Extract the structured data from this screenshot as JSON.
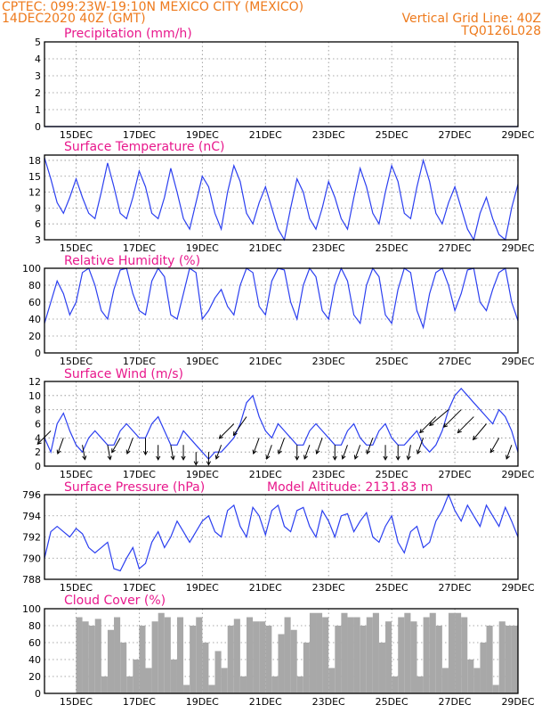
{
  "header": {
    "line1_left": "CPTEC:  099:23W-19:10N  MEXICO CITY (MEXICO)",
    "line2_left": "14DEC2020 40Z (GMT)",
    "line2_right": "Vertical Grid Line: 40Z",
    "line3_right": "TQ0126L028"
  },
  "colors": {
    "header": "#ee7a1c",
    "panel_title": "#e8188c",
    "series": "#2b3ff0",
    "cloud": "#a8a8a8"
  },
  "x_labels": [
    "15DEC",
    "17DEC",
    "19DEC",
    "21DEC",
    "23DEC",
    "25DEC",
    "27DEC",
    "29DEC"
  ],
  "chart_data": [
    {
      "type": "line",
      "title": "Precipitation (mm/h)",
      "x": [
        14,
        29
      ],
      "values": [
        0,
        0
      ],
      "ylim": [
        0,
        5
      ],
      "yticks": [
        0,
        1,
        2,
        3,
        4,
        5
      ],
      "grid": true
    },
    {
      "type": "line",
      "title": "Surface Temperature (nC)",
      "x": [
        14.0,
        14.2,
        14.4,
        14.6,
        14.8,
        15.0,
        15.2,
        15.4,
        15.6,
        15.8,
        16.0,
        16.2,
        16.4,
        16.6,
        16.8,
        17.0,
        17.2,
        17.4,
        17.6,
        17.8,
        18.0,
        18.2,
        18.4,
        18.6,
        18.8,
        19.0,
        19.2,
        19.4,
        19.6,
        19.8,
        20.0,
        20.2,
        20.4,
        20.6,
        20.8,
        21.0,
        21.2,
        21.4,
        21.6,
        21.8,
        22.0,
        22.2,
        22.4,
        22.6,
        22.8,
        23.0,
        23.2,
        23.4,
        23.6,
        23.8,
        24.0,
        24.2,
        24.4,
        24.6,
        24.8,
        25.0,
        25.2,
        25.4,
        25.6,
        25.8,
        26.0,
        26.2,
        26.4,
        26.6,
        26.8,
        27.0,
        27.2,
        27.4,
        27.6,
        27.8,
        28.0,
        28.2,
        28.4,
        28.6,
        28.8,
        29.0
      ],
      "values": [
        18.5,
        14.5,
        10,
        8,
        11,
        14.5,
        11,
        8,
        7,
        12,
        17.5,
        13,
        8,
        7,
        11,
        16,
        13,
        8,
        7,
        11,
        16.5,
        12,
        7,
        5,
        10,
        15,
        13,
        8,
        5,
        12,
        17,
        14,
        8,
        6,
        10,
        13,
        9,
        5,
        3,
        9,
        14.5,
        12,
        7,
        5,
        9,
        14,
        11,
        7,
        5,
        11,
        16.5,
        13,
        8,
        6,
        12,
        17,
        14,
        8,
        7,
        13,
        18,
        14,
        8,
        6,
        10,
        13,
        9,
        5,
        3,
        8,
        11,
        7,
        4,
        3,
        9,
        13.5
      ],
      "ylim": [
        3,
        19
      ],
      "yticks": [
        3,
        6,
        9,
        12,
        15,
        18
      ],
      "grid": true
    },
    {
      "type": "line",
      "title": "Relative Humidity (%)",
      "x": [
        14.0,
        14.2,
        14.4,
        14.6,
        14.8,
        15.0,
        15.2,
        15.4,
        15.6,
        15.8,
        16.0,
        16.2,
        16.4,
        16.6,
        16.8,
        17.0,
        17.2,
        17.4,
        17.6,
        17.8,
        18.0,
        18.2,
        18.4,
        18.6,
        18.8,
        19.0,
        19.2,
        19.4,
        19.6,
        19.8,
        20.0,
        20.2,
        20.4,
        20.6,
        20.8,
        21.0,
        21.2,
        21.4,
        21.6,
        21.8,
        22.0,
        22.2,
        22.4,
        22.6,
        22.8,
        23.0,
        23.2,
        23.4,
        23.6,
        23.8,
        24.0,
        24.2,
        24.4,
        24.6,
        24.8,
        25.0,
        25.2,
        25.4,
        25.6,
        25.8,
        26.0,
        26.2,
        26.4,
        26.6,
        26.8,
        27.0,
        27.2,
        27.4,
        27.6,
        27.8,
        28.0,
        28.2,
        28.4,
        28.6,
        28.8,
        29.0
      ],
      "values": [
        35,
        60,
        85,
        70,
        45,
        60,
        95,
        100,
        80,
        50,
        40,
        75,
        98,
        100,
        70,
        50,
        45,
        85,
        100,
        90,
        45,
        40,
        70,
        100,
        95,
        40,
        50,
        65,
        75,
        55,
        45,
        80,
        100,
        95,
        55,
        45,
        85,
        100,
        98,
        60,
        40,
        80,
        100,
        90,
        50,
        40,
        80,
        100,
        85,
        45,
        35,
        80,
        100,
        90,
        45,
        35,
        75,
        100,
        95,
        50,
        30,
        70,
        95,
        100,
        80,
        50,
        70,
        98,
        100,
        60,
        50,
        75,
        95,
        100,
        60,
        38
      ],
      "ylim": [
        0,
        100
      ],
      "yticks": [
        0,
        20,
        40,
        60,
        80,
        100
      ],
      "grid": true
    },
    {
      "type": "line",
      "title": "Surface Wind (m/s)",
      "x": [
        14.0,
        14.2,
        14.4,
        14.6,
        14.8,
        15.0,
        15.2,
        15.4,
        15.6,
        15.8,
        16.0,
        16.2,
        16.4,
        16.6,
        16.8,
        17.0,
        17.2,
        17.4,
        17.6,
        17.8,
        18.0,
        18.2,
        18.4,
        18.6,
        18.8,
        19.0,
        19.2,
        19.4,
        19.6,
        19.8,
        20.0,
        20.2,
        20.4,
        20.6,
        20.8,
        21.0,
        21.2,
        21.4,
        21.6,
        21.8,
        22.0,
        22.2,
        22.4,
        22.6,
        22.8,
        23.0,
        23.2,
        23.4,
        23.6,
        23.8,
        24.0,
        24.2,
        24.4,
        24.6,
        24.8,
        25.0,
        25.2,
        25.4,
        25.6,
        25.8,
        26.0,
        26.2,
        26.4,
        26.6,
        26.8,
        27.0,
        27.2,
        27.4,
        27.6,
        27.8,
        28.0,
        28.2,
        28.4,
        28.6,
        28.8,
        29.0
      ],
      "values": [
        4,
        2,
        6,
        7.5,
        5,
        3,
        2,
        4,
        5,
        4,
        3,
        3,
        5,
        6,
        5,
        4,
        4,
        6,
        7,
        5,
        3,
        3,
        5,
        4,
        3,
        2,
        1,
        2,
        2,
        3,
        4,
        6,
        9,
        10,
        7,
        5,
        4,
        6,
        5,
        4,
        3,
        3,
        5,
        6,
        5,
        4,
        3,
        3,
        5,
        6,
        4,
        3,
        3,
        5,
        6,
        4,
        3,
        3,
        4,
        5,
        3,
        2,
        3,
        5,
        8,
        10,
        11,
        10,
        9,
        8,
        7,
        6,
        8,
        7,
        5,
        2
      ],
      "ylim": [
        0,
        12
      ],
      "yticks": [
        0,
        2,
        4,
        6,
        8,
        10,
        12
      ],
      "grid": true,
      "wind_arrows": [
        {
          "x": 14.2,
          "speed": 5,
          "dir": 225
        },
        {
          "x": 14.6,
          "speed": 4,
          "dir": 250
        },
        {
          "x": 15.2,
          "speed": 3,
          "dir": 280
        },
        {
          "x": 16.0,
          "speed": 3,
          "dir": 280
        },
        {
          "x": 16.4,
          "speed": 4,
          "dir": 240
        },
        {
          "x": 16.8,
          "speed": 4,
          "dir": 250
        },
        {
          "x": 17.2,
          "speed": 4,
          "dir": 270
        },
        {
          "x": 17.6,
          "speed": 3,
          "dir": 270
        },
        {
          "x": 18.0,
          "speed": 3,
          "dir": 280
        },
        {
          "x": 18.4,
          "speed": 3,
          "dir": 270
        },
        {
          "x": 18.8,
          "speed": 2,
          "dir": 270
        },
        {
          "x": 19.2,
          "speed": 2,
          "dir": 270
        },
        {
          "x": 19.6,
          "speed": 3,
          "dir": 250
        },
        {
          "x": 20.0,
          "speed": 6,
          "dir": 225
        },
        {
          "x": 20.4,
          "speed": 7,
          "dir": 235
        },
        {
          "x": 20.8,
          "speed": 4,
          "dir": 250
        },
        {
          "x": 21.2,
          "speed": 3,
          "dir": 250
        },
        {
          "x": 21.6,
          "speed": 4,
          "dir": 250
        },
        {
          "x": 22.0,
          "speed": 3,
          "dir": 270
        },
        {
          "x": 22.4,
          "speed": 3,
          "dir": 250
        },
        {
          "x": 22.8,
          "speed": 4,
          "dir": 250
        },
        {
          "x": 23.2,
          "speed": 3,
          "dir": 270
        },
        {
          "x": 23.6,
          "speed": 3,
          "dir": 250
        },
        {
          "x": 24.0,
          "speed": 3,
          "dir": 250
        },
        {
          "x": 24.4,
          "speed": 4,
          "dir": 250
        },
        {
          "x": 24.8,
          "speed": 3,
          "dir": 270
        },
        {
          "x": 25.2,
          "speed": 3,
          "dir": 270
        },
        {
          "x": 25.6,
          "speed": 3,
          "dir": 260
        },
        {
          "x": 26.0,
          "speed": 4,
          "dir": 250
        },
        {
          "x": 26.4,
          "speed": 7,
          "dir": 225
        },
        {
          "x": 26.8,
          "speed": 8,
          "dir": 220
        },
        {
          "x": 27.2,
          "speed": 8,
          "dir": 225
        },
        {
          "x": 27.6,
          "speed": 7,
          "dir": 225
        },
        {
          "x": 28.0,
          "speed": 6,
          "dir": 230
        },
        {
          "x": 28.4,
          "speed": 4,
          "dir": 240
        },
        {
          "x": 28.8,
          "speed": 3,
          "dir": 250
        }
      ]
    },
    {
      "type": "line",
      "title": "Surface Pressure (hPa)",
      "annotation": "Model Altitude: 2131.83 m",
      "x": [
        14.0,
        14.2,
        14.4,
        14.6,
        14.8,
        15.0,
        15.2,
        15.4,
        15.6,
        15.8,
        16.0,
        16.2,
        16.4,
        16.6,
        16.8,
        17.0,
        17.2,
        17.4,
        17.6,
        17.8,
        18.0,
        18.2,
        18.4,
        18.6,
        18.8,
        19.0,
        19.2,
        19.4,
        19.6,
        19.8,
        20.0,
        20.2,
        20.4,
        20.6,
        20.8,
        21.0,
        21.2,
        21.4,
        21.6,
        21.8,
        22.0,
        22.2,
        22.4,
        22.6,
        22.8,
        23.0,
        23.2,
        23.4,
        23.6,
        23.8,
        24.0,
        24.2,
        24.4,
        24.6,
        24.8,
        25.0,
        25.2,
        25.4,
        25.6,
        25.8,
        26.0,
        26.2,
        26.4,
        26.6,
        26.8,
        27.0,
        27.2,
        27.4,
        27.6,
        27.8,
        28.0,
        28.2,
        28.4,
        28.6,
        28.8,
        29.0
      ],
      "values": [
        790,
        792.5,
        793,
        792.5,
        792,
        792.8,
        792.3,
        791,
        790.5,
        791,
        791.5,
        789,
        788.8,
        790,
        791,
        789,
        789.5,
        791.5,
        792.5,
        791,
        792,
        793.5,
        792.5,
        791.5,
        792.5,
        793.5,
        794,
        792.5,
        792,
        794.5,
        795,
        793,
        792,
        794.8,
        794,
        792.2,
        794.5,
        795,
        793,
        792.5,
        794.5,
        794.8,
        793,
        792,
        794.5,
        793.5,
        792,
        794,
        794.2,
        792.5,
        793.5,
        794.3,
        792,
        791.5,
        793,
        794,
        791.5,
        790.5,
        792.5,
        793,
        791,
        791.5,
        793.5,
        794.5,
        796,
        794.5,
        793.5,
        795,
        794,
        793,
        795,
        794,
        793,
        794.8,
        793.5,
        792
      ],
      "ylim": [
        788,
        796
      ],
      "yticks": [
        788,
        790,
        792,
        794,
        796
      ],
      "grid": true
    },
    {
      "type": "bar",
      "title": "Cloud Cover (%)",
      "x": [
        14.0,
        14.2,
        14.4,
        14.6,
        14.8,
        15.0,
        15.2,
        15.4,
        15.6,
        15.8,
        16.0,
        16.2,
        16.4,
        16.6,
        16.8,
        17.0,
        17.2,
        17.4,
        17.6,
        17.8,
        18.0,
        18.2,
        18.4,
        18.6,
        18.8,
        19.0,
        19.2,
        19.4,
        19.6,
        19.8,
        20.0,
        20.2,
        20.4,
        20.6,
        20.8,
        21.0,
        21.2,
        21.4,
        21.6,
        21.8,
        22.0,
        22.2,
        22.4,
        22.6,
        22.8,
        23.0,
        23.2,
        23.4,
        23.6,
        23.8,
        24.0,
        24.2,
        24.4,
        24.6,
        24.8,
        25.0,
        25.2,
        25.4,
        25.6,
        25.8,
        26.0,
        26.2,
        26.4,
        26.6,
        26.8,
        27.0,
        27.2,
        27.4,
        27.6,
        27.8,
        28.0,
        28.2,
        28.4,
        28.6,
        28.8,
        29.0
      ],
      "values": [
        0,
        0,
        0,
        0,
        0,
        90,
        85,
        80,
        88,
        20,
        75,
        90,
        60,
        20,
        40,
        80,
        30,
        85,
        95,
        90,
        40,
        90,
        10,
        80,
        90,
        60,
        10,
        50,
        30,
        80,
        88,
        20,
        90,
        85,
        85,
        80,
        20,
        70,
        90,
        75,
        20,
        60,
        95,
        95,
        90,
        30,
        80,
        95,
        90,
        90,
        80,
        90,
        95,
        60,
        85,
        20,
        90,
        95,
        85,
        20,
        90,
        95,
        80,
        30,
        95,
        95,
        90,
        40,
        30,
        60,
        80,
        10,
        85,
        80,
        80,
        80
      ],
      "ylim": [
        0,
        100
      ],
      "yticks": [
        0,
        20,
        40,
        60,
        80,
        100
      ],
      "grid": true
    }
  ]
}
